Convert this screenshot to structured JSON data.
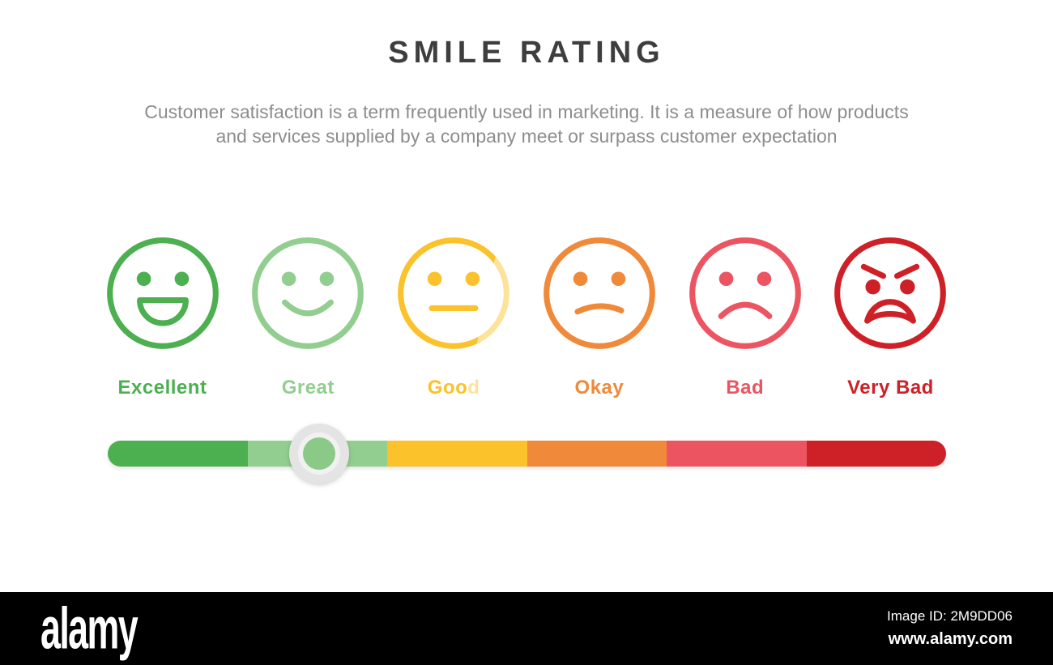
{
  "header": {
    "title": "SMILE RATING",
    "description_lines": [
      "Customer satisfaction is a term frequently used in marketing. It is a measure of how products",
      "and services supplied by a company meet or surpass customer expectation"
    ]
  },
  "ratings": [
    {
      "label": "Excellent",
      "color": "#4caf50",
      "icon": "big-smile-face-icon"
    },
    {
      "label": "Great",
      "color": "#92ce90",
      "icon": "smile-face-icon"
    },
    {
      "label": "Good",
      "color": "#fbc22c",
      "icon": "neutral-face-icon"
    },
    {
      "label": "Okay",
      "color": "#f0893a",
      "icon": "slight-frown-face-icon"
    },
    {
      "label": "Bad",
      "color": "#ed5462",
      "icon": "frown-face-icon"
    },
    {
      "label": "Very Bad",
      "color": "#ce2027",
      "icon": "angry-face-icon"
    }
  ],
  "slider": {
    "segments": [
      {
        "color": "#4caf50"
      },
      {
        "color": "#92ce90"
      },
      {
        "color": "#fbc22c"
      },
      {
        "color": "#f0893a"
      },
      {
        "color": "#ed5462"
      },
      {
        "color": "#ce2027"
      }
    ],
    "knob": {
      "position_percent": 25.2,
      "ring_color": "#e4e4e4",
      "fill_color": "#8bc989"
    }
  },
  "watermark": {
    "logo_text": "alamy",
    "image_id": "Image ID: 2M9DD06",
    "website": "www.alamy.com",
    "bar_color": "#000000"
  }
}
